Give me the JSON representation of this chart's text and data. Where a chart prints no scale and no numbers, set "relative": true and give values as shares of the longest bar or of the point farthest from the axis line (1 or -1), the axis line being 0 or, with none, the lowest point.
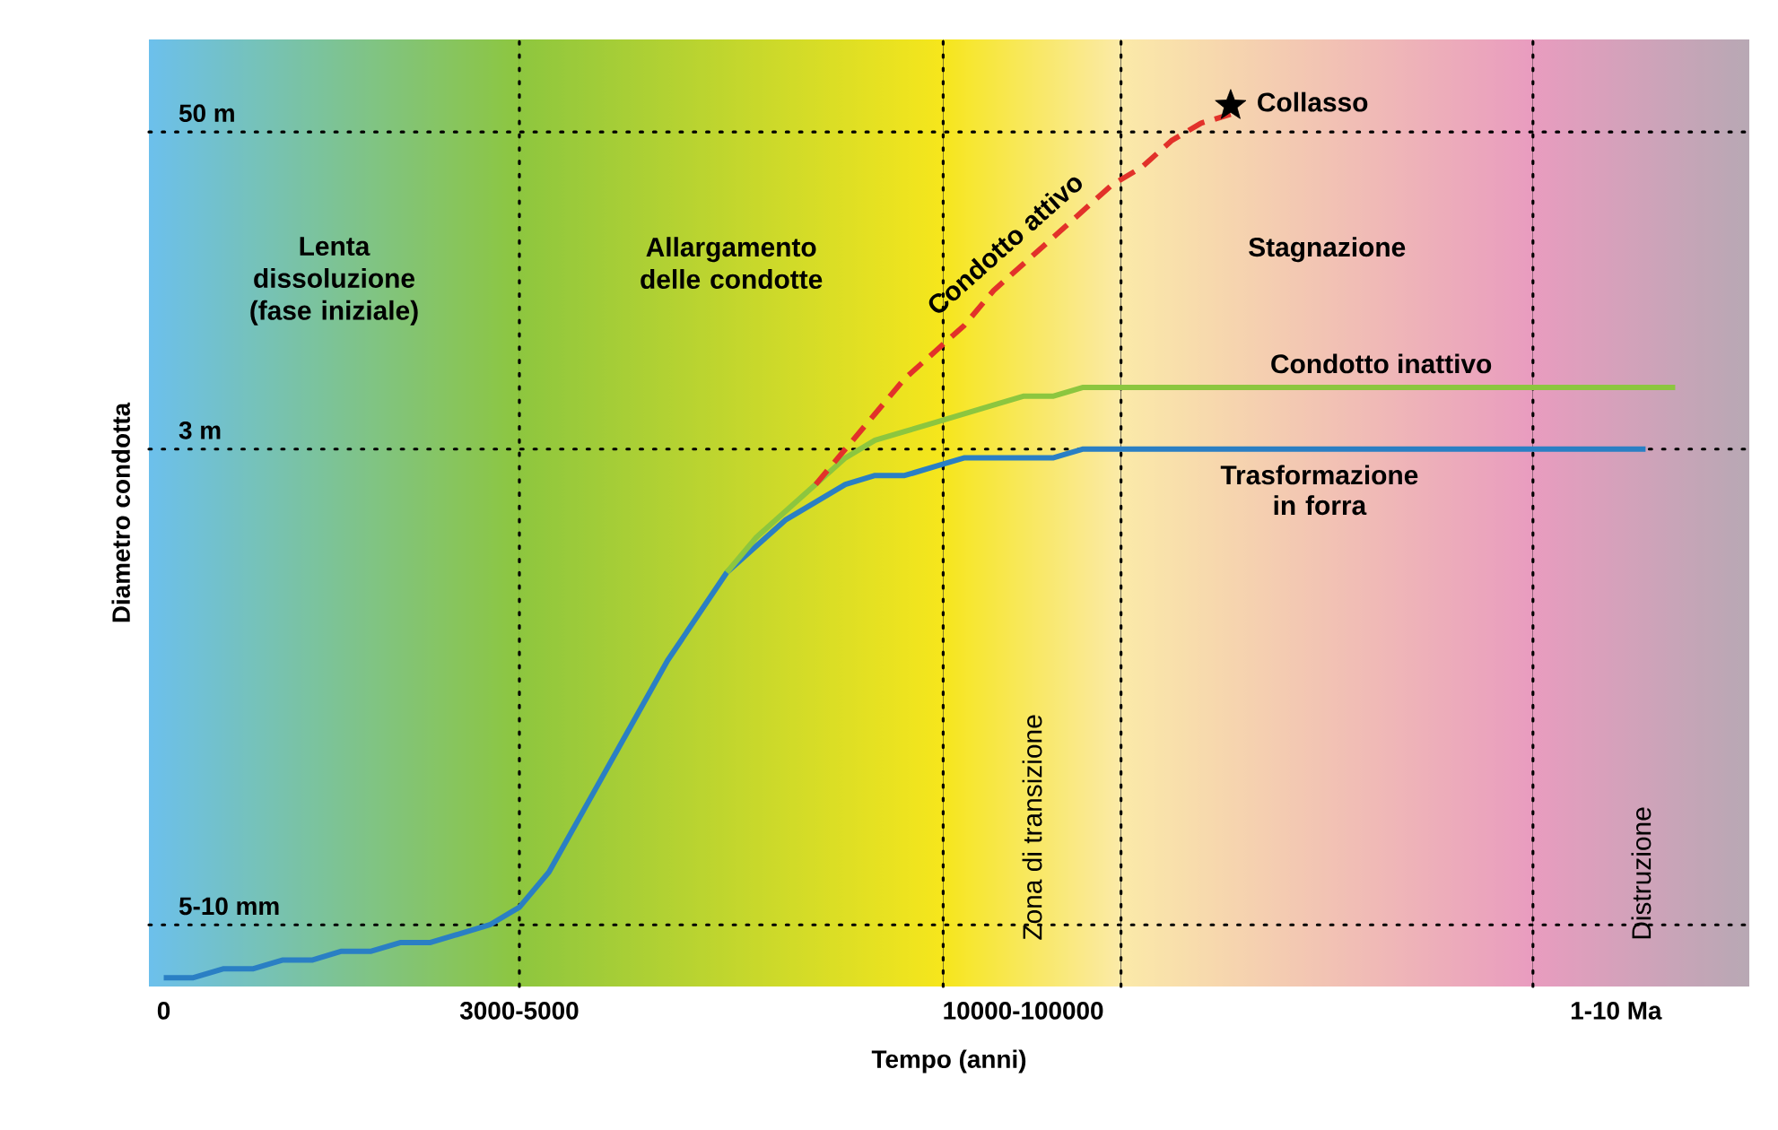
{
  "chart_data": {
    "type": "line",
    "relative": true,
    "xlabel": "Tempo (anni)",
    "ylabel": "Diametro condotta",
    "tick_labels": "x",
    "categories": [
      "0",
      null,
      null,
      null,
      null,
      null,
      null,
      null,
      null,
      null,
      null,
      null,
      "3000-5000",
      null,
      null,
      null,
      null,
      null,
      null,
      null,
      null,
      null,
      null,
      null,
      null,
      null,
      null,
      null,
      null,
      "10000-100000",
      null,
      null,
      null,
      null,
      null,
      null,
      null,
      null,
      null,
      null,
      null,
      null,
      null,
      null,
      null,
      null,
      null,
      null,
      null,
      "1-10 Ma",
      null,
      null,
      null,
      null
    ],
    "ref_lines": [
      {
        "axis": "y",
        "value": 0.97,
        "label": "50 m",
        "line_style": "dotted"
      },
      {
        "axis": "y",
        "value": 0.61,
        "label": "3 m",
        "line_style": "dotted"
      },
      {
        "axis": "y",
        "value": 0.07,
        "label": "5-10 mm",
        "line_style": "dotted"
      }
    ],
    "series": [
      {
        "name": "Trasformazione in forra",
        "color": "#2a7fc4",
        "line_style": "solid",
        "values": [
          0.01,
          0.01,
          0.02,
          0.02,
          0.03,
          0.03,
          0.04,
          0.04,
          0.05,
          0.05,
          0.06,
          0.07,
          0.09,
          0.13,
          0.19,
          0.25,
          0.31,
          0.37,
          0.42,
          0.47,
          0.5,
          0.53,
          0.55,
          0.57,
          0.58,
          0.58,
          0.59,
          0.6,
          0.6,
          0.6,
          0.6,
          0.61,
          0.61,
          0.61,
          0.61,
          0.61,
          0.61,
          0.61,
          0.61,
          0.61,
          0.61,
          0.61,
          0.61,
          0.61,
          0.61,
          0.61,
          0.61,
          0.61,
          0.61,
          0.61,
          0.61,
          null,
          null,
          null
        ]
      },
      {
        "name": "Condotto inattivo",
        "color": "#8cc63f",
        "line_style": "solid",
        "values": [
          null,
          null,
          null,
          null,
          null,
          null,
          null,
          null,
          null,
          null,
          null,
          null,
          null,
          null,
          null,
          null,
          null,
          null,
          null,
          0.47,
          0.51,
          0.54,
          0.57,
          0.6,
          0.62,
          0.63,
          0.64,
          0.65,
          0.66,
          0.67,
          0.67,
          0.68,
          0.68,
          0.68,
          0.68,
          0.68,
          0.68,
          0.68,
          0.68,
          0.68,
          0.68,
          0.68,
          0.68,
          0.68,
          0.68,
          0.68,
          0.68,
          0.68,
          0.68,
          0.68,
          0.68,
          0.68,
          null,
          null
        ]
      },
      {
        "name": "Condotto attivo",
        "color": "#e2312a",
        "line_style": "dashed",
        "values": [
          null,
          null,
          null,
          null,
          null,
          null,
          null,
          null,
          null,
          null,
          null,
          null,
          null,
          null,
          null,
          null,
          null,
          null,
          null,
          null,
          null,
          null,
          0.57,
          0.61,
          0.65,
          0.69,
          0.72,
          0.75,
          0.79,
          0.82,
          0.85,
          0.88,
          0.91,
          0.93,
          0.96,
          0.98,
          0.99,
          null,
          null,
          null,
          null,
          null,
          null,
          null,
          null,
          null,
          null,
          null,
          null,
          null,
          null,
          null,
          null,
          null
        ]
      },
      {
        "type": "scatter",
        "color": "#000000",
        "marker": "star",
        "values": [
          null,
          null,
          null,
          null,
          null,
          null,
          null,
          null,
          null,
          null,
          null,
          null,
          null,
          null,
          null,
          null,
          null,
          null,
          null,
          null,
          null,
          null,
          null,
          null,
          null,
          null,
          null,
          null,
          null,
          null,
          null,
          null,
          null,
          null,
          null,
          null,
          1,
          null,
          null,
          null,
          null,
          null,
          null,
          null,
          null,
          null,
          null,
          null,
          null,
          null,
          null,
          null,
          null,
          null
        ]
      }
    ],
    "annotations": [
      "Lenta dissoluzione (fase iniziale)",
      "Allargamento delle condotte",
      "Zona di transizione",
      "Stagnazione",
      "Distruzione",
      "Collasso"
    ]
  }
}
